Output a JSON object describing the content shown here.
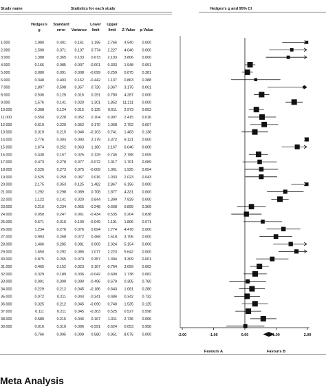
{
  "headers": {
    "study_name": "Study name",
    "statistics": "Statistics for each study",
    "plot_title": "Hedges's g and 95% CI",
    "columns": [
      {
        "line1": "Hedges's",
        "line2": "g"
      },
      {
        "line1": "Standard",
        "line2": "error"
      },
      {
        "line1": "",
        "line2": "Variance"
      },
      {
        "line1": "Lower",
        "line2": "limit"
      },
      {
        "line1": "Upper",
        "line2": "limit"
      },
      {
        "line1": "",
        "line2": "Z-Value"
      },
      {
        "line1": "",
        "line2": "p-Value"
      }
    ]
  },
  "chart_data": {
    "type": "forest",
    "x_ticks": [
      "-2.00",
      "-1.00",
      "0.00",
      "1.00",
      "2.00"
    ],
    "xlim": [
      -2,
      2
    ],
    "favours_left": "Favours A",
    "favours_right": "Favours B",
    "studies": [
      {
        "name": "1.000",
        "g": "1.980",
        "se": "0.401",
        "var": "0.161",
        "lo": "1.195",
        "hi": "2.766",
        "z": "4.940",
        "p": "0.000"
      },
      {
        "name": "2.000",
        "g": "1.500",
        "se": "0.371",
        "var": "0.137",
        "lo": "0.774",
        "hi": "2.227",
        "z": "4.046",
        "p": "0.000"
      },
      {
        "name": "3.000",
        "g": "1.388",
        "se": "0.365",
        "var": "0.133",
        "lo": "0.673",
        "hi": "2.103",
        "z": "3.806",
        "p": "0.000"
      },
      {
        "name": "4.000",
        "g": "0.166",
        "se": "0.085",
        "var": "0.007",
        "lo": "-0.001",
        "hi": "0.333",
        "z": "1.948",
        "p": "0.051"
      },
      {
        "name": "5.000",
        "g": "0.080",
        "se": "0.091",
        "var": "0.008",
        "lo": "-0.099",
        "hi": "0.259",
        "z": "0.875",
        "p": "0.381"
      },
      {
        "name": "6.000",
        "g": "0.348",
        "se": "0.403",
        "var": "0.162",
        "lo": "-0.442",
        "hi": "1.137",
        "z": "0.863",
        "p": "0.388"
      },
      {
        "name": "7.000",
        "g": "1.897",
        "se": "0.598",
        "var": "0.357",
        "lo": "0.726",
        "hi": "3.067",
        "z": "3.175",
        "p": "0.001"
      },
      {
        "name": "8.000",
        "g": "0.536",
        "se": "0.125",
        "var": "0.016",
        "lo": "0.291",
        "hi": "0.780",
        "z": "4.287",
        "p": "0.000"
      },
      {
        "name": "9.000",
        "g": "1.576",
        "se": "0.141",
        "var": "0.020",
        "lo": "1.301",
        "hi": "1.852",
        "z": "11.211",
        "p": "0.000"
      },
      {
        "name": "10.000",
        "g": "0.368",
        "se": "0.124",
        "var": "0.015",
        "lo": "0.125",
        "hi": "0.611",
        "z": "2.973",
        "p": "0.003"
      },
      {
        "name": "11.000",
        "g": "0.550",
        "se": "0.228",
        "var": "0.052",
        "lo": "0.104",
        "hi": "0.997",
        "z": "2.415",
        "p": "0.016"
      },
      {
        "name": "12.000",
        "g": "0.619",
        "se": "0.229",
        "var": "0.052",
        "lo": "0.170",
        "hi": "1.068",
        "z": "2.702",
        "p": "0.007"
      },
      {
        "name": "13.000",
        "g": "0.319",
        "se": "0.215",
        "var": "0.046",
        "lo": "-0.103",
        "hi": "0.741",
        "z": "1.483",
        "p": "0.138"
      },
      {
        "name": "14.000",
        "g": "2.776",
        "se": "0.304",
        "var": "0.093",
        "lo": "2.179",
        "hi": "3.372",
        "z": "9.121",
        "p": "0.000"
      },
      {
        "name": "15.000",
        "g": "1.674",
        "se": "0.252",
        "var": "0.063",
        "lo": "1.180",
        "hi": "2.167",
        "z": "6.646",
        "p": "0.000"
      },
      {
        "name": "16.000",
        "g": "0.438",
        "se": "0.157",
        "var": "0.025",
        "lo": "0.129",
        "hi": "0.746",
        "z": "2.788",
        "p": "0.005"
      },
      {
        "name": "17.000",
        "g": "0.473",
        "se": "0.278",
        "var": "0.077",
        "lo": "-0.072",
        "hi": "1.017",
        "z": "1.701",
        "p": "0.089"
      },
      {
        "name": "18.000",
        "g": "0.526",
        "se": "0.273",
        "var": "0.075",
        "lo": "-0.009",
        "hi": "1.061",
        "z": "1.925",
        "p": "0.054"
      },
      {
        "name": "19.000",
        "g": "0.525",
        "se": "0.259",
        "var": "0.067",
        "lo": "0.016",
        "hi": "1.033",
        "z": "2.023",
        "p": "0.043"
      },
      {
        "name": "20.000",
        "g": "2.175",
        "se": "0.353",
        "var": "0.125",
        "lo": "1.482",
        "hi": "2.867",
        "z": "6.156",
        "p": "0.000"
      },
      {
        "name": "21.000",
        "g": "1.292",
        "se": "0.298",
        "var": "0.089",
        "lo": "0.708",
        "hi": "1.877",
        "z": "4.331",
        "p": "0.000"
      },
      {
        "name": "22.000",
        "g": "1.122",
        "se": "0.141",
        "var": "0.020",
        "lo": "0.844",
        "hi": "1.399",
        "z": "7.929",
        "p": "0.000"
      },
      {
        "name": "23.000",
        "g": "0.210",
        "se": "0.234",
        "var": "0.055",
        "lo": "-0.248",
        "hi": "0.668",
        "z": "0.899",
        "p": "0.369"
      },
      {
        "name": "24.000",
        "g": "0.050",
        "se": "0.247",
        "var": "0.061",
        "lo": "-0.434",
        "hi": "0.535",
        "z": "0.204",
        "p": "0.838"
      },
      {
        "name": "25.000",
        "g": "0.571",
        "se": "0.316",
        "var": "0.100",
        "lo": "-0.049",
        "hi": "1.191",
        "z": "1.806",
        "p": "0.071"
      },
      {
        "name": "26.000",
        "g": "1.234",
        "se": "0.276",
        "var": "0.076",
        "lo": "0.694",
        "hi": "1.774",
        "z": "4.478",
        "p": "0.000"
      },
      {
        "name": "27.000",
        "g": "0.993",
        "se": "0.268",
        "var": "0.072",
        "lo": "0.468",
        "hi": "1.518",
        "z": "3.706",
        "p": "0.000"
      },
      {
        "name": "28.000",
        "g": "1.466",
        "se": "0.285",
        "var": "0.081",
        "lo": "0.909",
        "hi": "2.024",
        "z": "5.154",
        "p": "0.000"
      },
      {
        "name": "29.000",
        "g": "1.650",
        "se": "0.292",
        "var": "0.085",
        "lo": "1.077",
        "hi": "2.223",
        "z": "5.642",
        "p": "0.000"
      },
      {
        "name": "30.000",
        "g": "0.875",
        "se": "0.265",
        "var": "0.070",
        "lo": "0.357",
        "hi": "1.394",
        "z": "3.309",
        "p": "0.001"
      },
      {
        "name": "31.000",
        "g": "0.465",
        "se": "0.152",
        "var": "0.023",
        "lo": "0.167",
        "hi": "0.764",
        "z": "3.059",
        "p": "0.002"
      },
      {
        "name": "32.000",
        "g": "0.329",
        "se": "0.189",
        "var": "0.036",
        "lo": "-0.042",
        "hi": "0.699",
        "z": "1.738",
        "p": "0.082"
      },
      {
        "name": "33.000",
        "g": "0.091",
        "se": "0.300",
        "var": "0.090",
        "lo": "-0.496",
        "hi": "0.679",
        "z": "0.305",
        "p": "0.760"
      },
      {
        "name": "34.000",
        "g": "0.229",
        "se": "0.212",
        "var": "0.045",
        "lo": "-0.186",
        "hi": "0.643",
        "z": "1.081",
        "p": "0.280"
      },
      {
        "name": "35.000",
        "g": "0.072",
        "se": "0.211",
        "var": "0.044",
        "lo": "-0.341",
        "hi": "0.486",
        "z": "0.342",
        "p": "0.732"
      },
      {
        "name": "36.000",
        "g": "0.325",
        "se": "0.212",
        "var": "0.045",
        "lo": "-0.090",
        "hi": "0.740",
        "z": "1.535",
        "p": "0.125"
      },
      {
        "name": "37.000",
        "g": "0.111",
        "se": "0.211",
        "var": "0.045",
        "lo": "-0.303",
        "hi": "0.525",
        "z": "0.527",
        "p": "0.598"
      },
      {
        "name": "38.000",
        "g": "0.589",
        "se": "0.215",
        "var": "0.046",
        "lo": "0.167",
        "hi": "1.011",
        "z": "2.736",
        "p": "0.006"
      },
      {
        "name": "39.000",
        "g": "0.016",
        "se": "0.310",
        "var": "0.096",
        "lo": "-0.591",
        "hi": "0.624",
        "z": "0.053",
        "p": "0.958"
      }
    ],
    "summary": {
      "g": "0.766",
      "se": "0.095",
      "var": "0.009",
      "lo": "0.580",
      "hi": "0.951",
      "z": "8.075",
      "p": "0.000"
    }
  },
  "caption": "Meta Analysis"
}
